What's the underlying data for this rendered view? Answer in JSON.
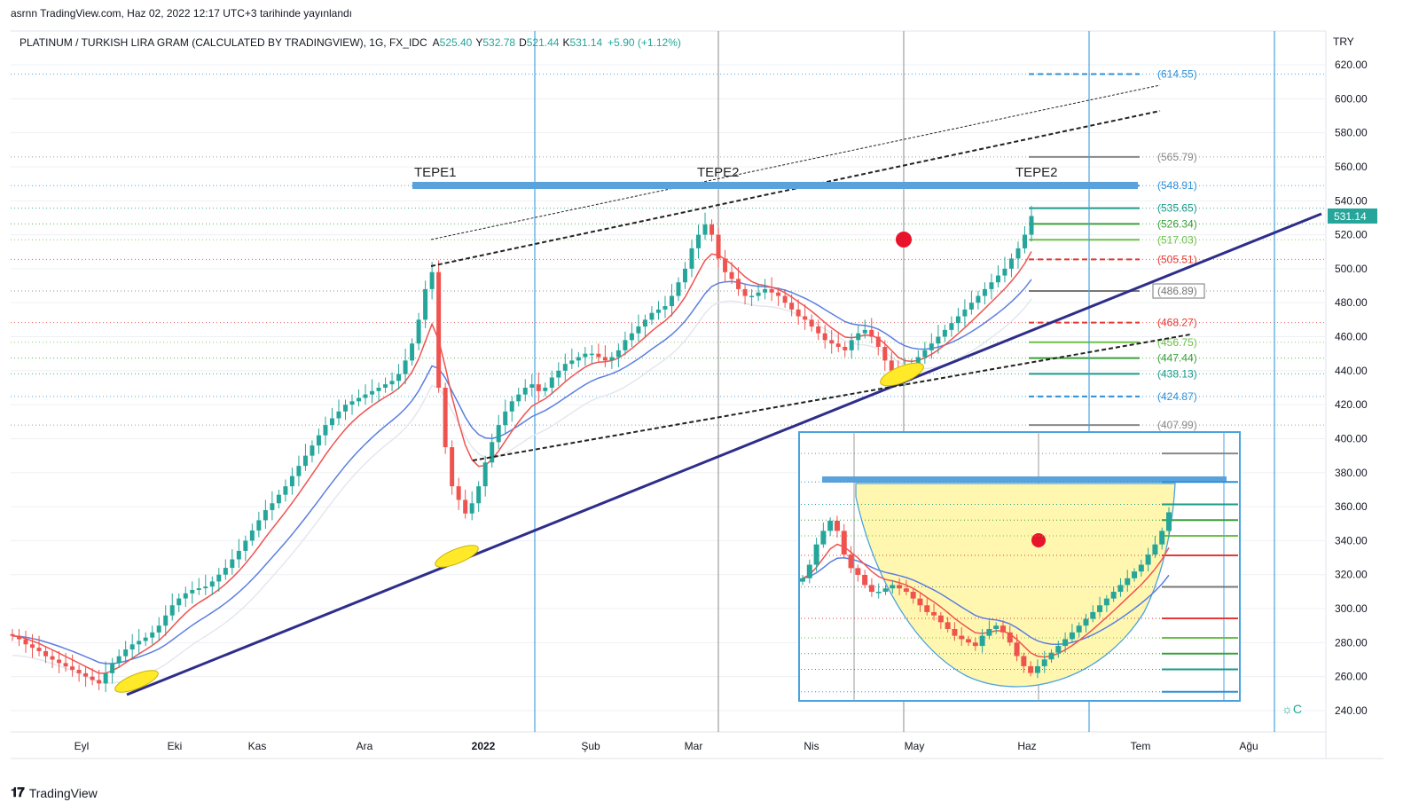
{
  "header": {
    "publish_line": "asrnn TradingView.com, Haz 02, 2022 12:17 UTC+3 tarihinde yayınlandı"
  },
  "chart_data": {
    "type": "candlestick",
    "symbol_line": "PLATINUM / TURKISH LIRA GRAM (CALCULATED BY TRADINGVIEW), 1G, FX_IDC",
    "ohlc": {
      "open_label": "A",
      "open": "525.40",
      "high_label": "Y",
      "high": "532.78",
      "low_label": "D",
      "low": "521.44",
      "close_label": "K",
      "close": "531.14",
      "change": "+5.90 (+1.12%)"
    },
    "currency": "TRY",
    "last_price": 531.14,
    "last_price_label": "531.14",
    "ylim": [
      230,
      635
    ],
    "y_ticks": [
      "620.00",
      "600.00",
      "580.00",
      "560.00",
      "540.00",
      "520.00",
      "500.00",
      "480.00",
      "460.00",
      "440.00",
      "420.00",
      "400.00",
      "380.00",
      "360.00",
      "340.00",
      "320.00",
      "300.00",
      "280.00",
      "260.00",
      "240.00"
    ],
    "x_labels": [
      "Eyl",
      "Eki",
      "Kas",
      "Ara",
      "2022",
      "Şub",
      "Mar",
      "Nis",
      "May",
      "Haz",
      "Tem",
      "Ağu"
    ],
    "annotations": [
      "TEPE1",
      "TEPE2",
      "TEPE2"
    ],
    "fib_levels": [
      {
        "value": 614.55,
        "label": "(614.55)",
        "color": "#2f8fd6"
      },
      {
        "value": 565.79,
        "label": "(565.79)",
        "color": "#888888"
      },
      {
        "value": 548.91,
        "label": "(548.91)",
        "color": "#2f8fd6"
      },
      {
        "value": 535.65,
        "label": "(535.65)",
        "color": "#1a9b8a"
      },
      {
        "value": 526.34,
        "label": "(526.34)",
        "color": "#3aa03a"
      },
      {
        "value": 517.03,
        "label": "(517.03)",
        "color": "#6cc04a"
      },
      {
        "value": 505.51,
        "label": "(505.51)",
        "color": "#e53935"
      },
      {
        "value": 486.89,
        "label": "(486.89)",
        "color": "#777777"
      },
      {
        "value": 468.27,
        "label": "(468.27)",
        "color": "#e53935"
      },
      {
        "value": 456.75,
        "label": "(456.75)",
        "color": "#6cc04a"
      },
      {
        "value": 447.44,
        "label": "(447.44)",
        "color": "#3aa03a"
      },
      {
        "value": 438.13,
        "label": "(438.13)",
        "color": "#1a9b8a"
      },
      {
        "value": 424.87,
        "label": "(424.87)",
        "color": "#2f8fd6"
      },
      {
        "value": 407.99,
        "label": "(407.99)",
        "color": "#888888"
      }
    ],
    "colors": {
      "up": "#26a69a",
      "down": "#ef5350",
      "ema_fast": "#ef5350",
      "ema_slow": "#5b7fe0",
      "trend": "#2e2e8a",
      "fib_blue": "#2f8fd6",
      "resistance": "#5aa2dc",
      "cup_fill": "#fff7b0"
    },
    "close_series": [
      284,
      282,
      279,
      277,
      275,
      272,
      270,
      268,
      266,
      264,
      262,
      260,
      258,
      256,
      262,
      268,
      272,
      276,
      279,
      281,
      283,
      286,
      290,
      296,
      302,
      306,
      309,
      311,
      312,
      313,
      316,
      320,
      324,
      329,
      334,
      340,
      346,
      352,
      358,
      362,
      367,
      372,
      378,
      384,
      390,
      396,
      402,
      408,
      412,
      416,
      420,
      422,
      424,
      426,
      428,
      430,
      432,
      434,
      438,
      446,
      456,
      470,
      488,
      498,
      430,
      395,
      372,
      364,
      356,
      362,
      372,
      386,
      398,
      408,
      416,
      422,
      426,
      430,
      432,
      428,
      430,
      436,
      440,
      444,
      446,
      448,
      450,
      450,
      448,
      446,
      448,
      452,
      458,
      462,
      466,
      470,
      474,
      476,
      478,
      484,
      492,
      500,
      512,
      520,
      526,
      520,
      506,
      498,
      494,
      488,
      484,
      484,
      486,
      488,
      486,
      484,
      480,
      476,
      472,
      470,
      466,
      462,
      458,
      456,
      454,
      452,
      458,
      462,
      464,
      460,
      454,
      446,
      440,
      436,
      440,
      444,
      448,
      452,
      456,
      460,
      464,
      468,
      472,
      476,
      480,
      484,
      488,
      492,
      496,
      500,
      506,
      512,
      520,
      531
    ]
  }
}
